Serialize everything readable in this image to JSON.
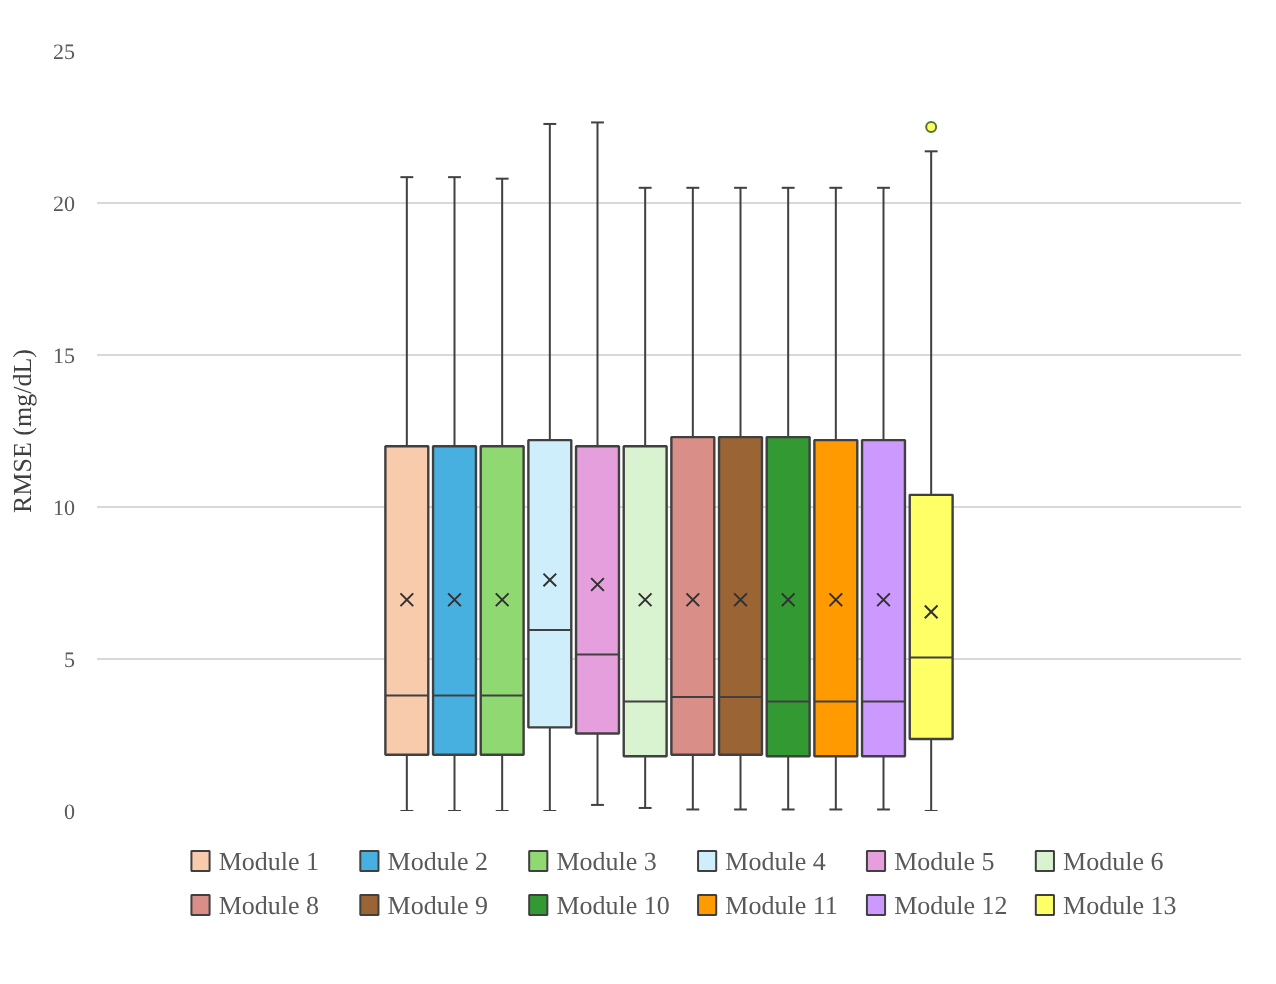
{
  "chart_data": {
    "type": "box",
    "ylabel": "RMSE (mg/dL)",
    "categories": [
      null
    ],
    "ylim": [
      0,
      25
    ],
    "yticks": [
      0,
      5,
      10,
      15,
      20,
      25
    ],
    "grid": "y",
    "legend": "bottom",
    "series": [
      {
        "name": "Module 1",
        "color": "#f8cbad",
        "boxes": [
          {
            "low": 0,
            "q1": 1.85,
            "median": 3.8,
            "q3": 12.0,
            "high": 20.85,
            "mean": 6.95
          }
        ]
      },
      {
        "name": "Module 2",
        "color": "#47b0e0",
        "boxes": [
          {
            "low": 0,
            "q1": 1.85,
            "median": 3.8,
            "q3": 12.0,
            "high": 20.85,
            "mean": 6.95
          }
        ]
      },
      {
        "name": "Module 3",
        "color": "#8fd872",
        "boxes": [
          {
            "low": 0,
            "q1": 1.85,
            "median": 3.8,
            "q3": 12.0,
            "high": 20.8,
            "mean": 6.95
          }
        ]
      },
      {
        "name": "Module 4",
        "color": "#cdeefa",
        "boxes": [
          {
            "low": 0,
            "q1": 2.75,
            "median": 5.95,
            "q3": 12.2,
            "high": 22.6,
            "mean": 7.6
          }
        ]
      },
      {
        "name": "Module 5",
        "color": "#e59fdc",
        "boxes": [
          {
            "low": 0.2,
            "q1": 2.55,
            "median": 5.15,
            "q3": 12.0,
            "high": 22.65,
            "mean": 7.45
          }
        ]
      },
      {
        "name": "Module 6",
        "color": "#d9f2d0",
        "boxes": [
          {
            "low": 0.1,
            "q1": 1.8,
            "median": 3.6,
            "q3": 12.0,
            "high": 20.5,
            "mean": 6.95
          }
        ]
      },
      {
        "name": "Module 8",
        "color": "#da8e88",
        "boxes": [
          {
            "low": 0.05,
            "q1": 1.85,
            "median": 3.75,
            "q3": 12.3,
            "high": 20.5,
            "mean": 6.95
          }
        ]
      },
      {
        "name": "Module 9",
        "color": "#9a6434",
        "boxes": [
          {
            "low": 0.05,
            "q1": 1.85,
            "median": 3.75,
            "q3": 12.3,
            "high": 20.5,
            "mean": 6.95
          }
        ]
      },
      {
        "name": "Module 10",
        "color": "#339933",
        "boxes": [
          {
            "low": 0.05,
            "q1": 1.8,
            "median": 3.6,
            "q3": 12.3,
            "high": 20.5,
            "mean": 6.95
          }
        ]
      },
      {
        "name": "Module 11",
        "color": "#ff9a00",
        "boxes": [
          {
            "low": 0.05,
            "q1": 1.8,
            "median": 3.6,
            "q3": 12.2,
            "high": 20.5,
            "mean": 6.95
          }
        ]
      },
      {
        "name": "Module 12",
        "color": "#cc99ff",
        "boxes": [
          {
            "low": 0.05,
            "q1": 1.8,
            "median": 3.6,
            "q3": 12.2,
            "high": 20.5,
            "mean": 6.95
          }
        ]
      },
      {
        "name": "Module 13",
        "color": "#ffff66",
        "boxes": [
          {
            "low": 0,
            "q1": 2.37,
            "median": 5.05,
            "q3": 10.4,
            "high": 21.7,
            "mean": 6.55,
            "outliers": [
              22.5
            ]
          }
        ]
      }
    ]
  }
}
